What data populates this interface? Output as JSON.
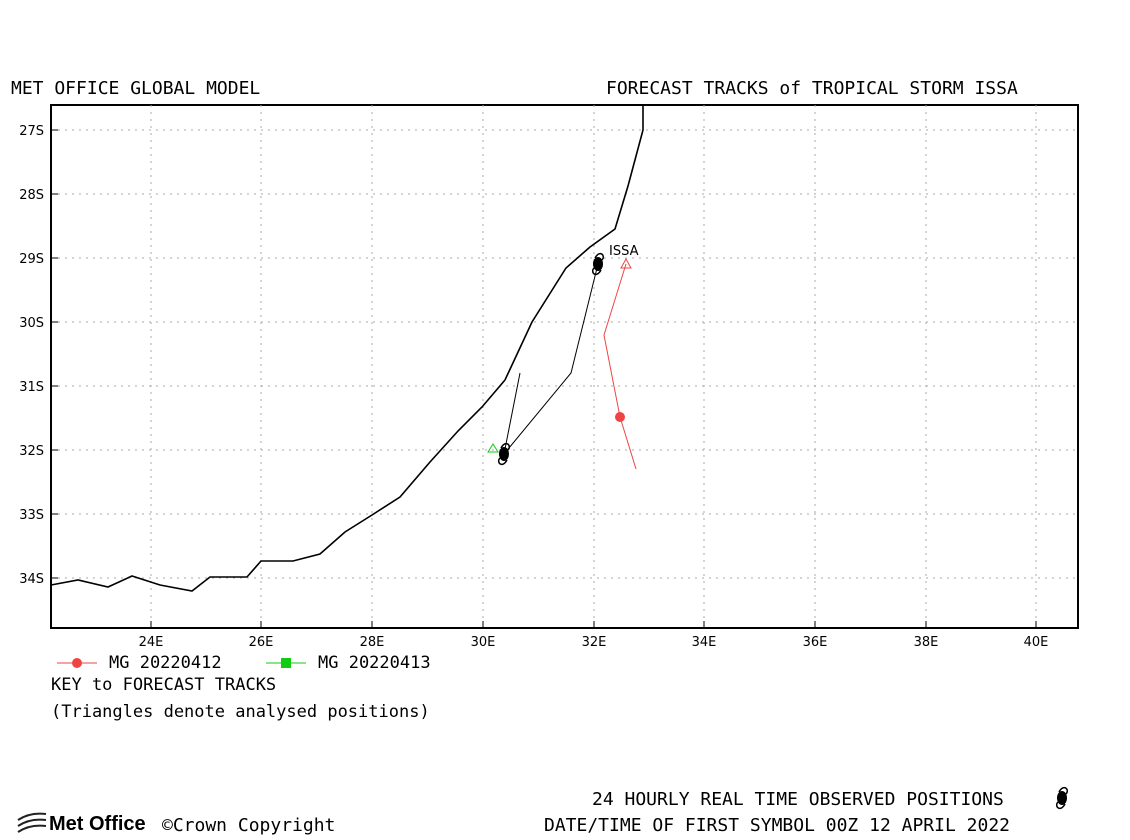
{
  "header": {
    "left_title": "MET OFFICE GLOBAL MODEL",
    "right_title": "FORECAST TRACKS of TROPICAL STORM ISSA"
  },
  "map": {
    "lat_labels": [
      "27S",
      "28S",
      "29S",
      "30S",
      "31S",
      "32S",
      "33S",
      "34S"
    ],
    "lon_labels": [
      "24E",
      "26E",
      "28E",
      "30E",
      "32E",
      "34E",
      "36E",
      "38E",
      "40E"
    ],
    "storm_label": "ISSA",
    "grid": "dotted",
    "colors": {
      "frame": "#000000",
      "coastline": "#000000",
      "grid": "#aaaaaa",
      "track_0412": "#ee4444",
      "track_0413": "#11cc11",
      "observed": "#000000"
    }
  },
  "legend": {
    "entries": [
      {
        "label": "MG 20220412",
        "color": "#ee4444",
        "marker": "circle"
      },
      {
        "label": "MG 20220413",
        "color": "#11cc11",
        "marker": "square"
      }
    ],
    "key_title": "KEY to FORECAST TRACKS",
    "key_note": "(Triangles denote analysed positions)"
  },
  "footer": {
    "logo_text": "Met Office",
    "copyright": "©Crown Copyright",
    "observed_label": "24 HOURLY REAL TIME OBSERVED POSITIONS",
    "date_label": "DATE/TIME OF FIRST SYMBOL 00Z 12 APRIL 2022"
  }
}
